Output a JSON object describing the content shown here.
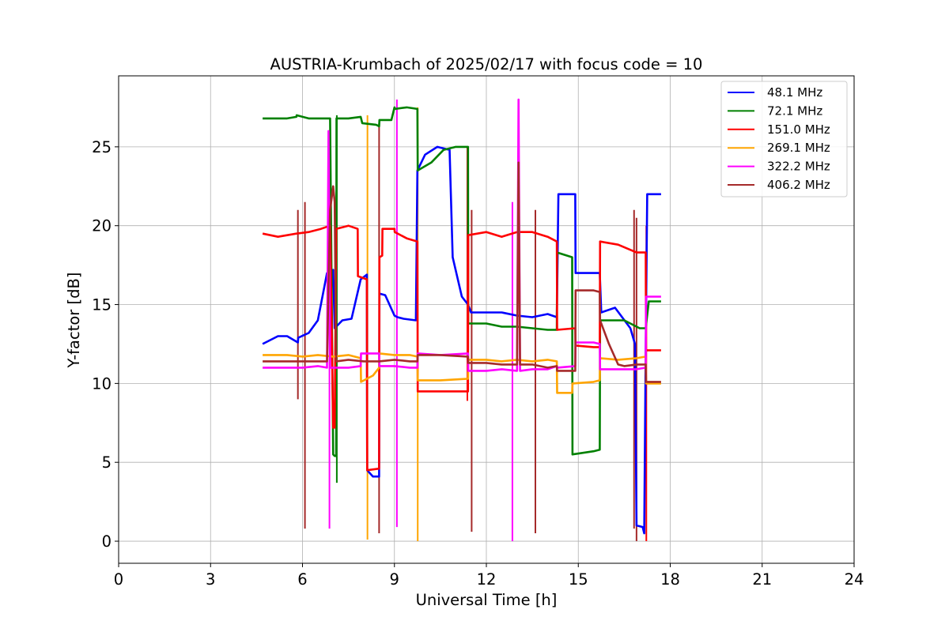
{
  "chart_data": {
    "type": "line",
    "title": "AUSTRIA-Krumbach of 2025/02/17 with focus code = 10",
    "xlabel": "Universal Time [h]",
    "ylabel": "Y-factor [dB]",
    "xlim": [
      0,
      24
    ],
    "ylim": [
      -1.4,
      29.5
    ],
    "xticks": [
      0,
      3,
      6,
      9,
      12,
      15,
      18,
      21,
      24
    ],
    "yticks": [
      0,
      5,
      10,
      15,
      20,
      25
    ],
    "grid": true,
    "legend_position": "top-right",
    "series": [
      {
        "name": " 48.1 MHz",
        "color": "#0000ff",
        "x": [
          4.7,
          5.2,
          5.5,
          5.85,
          5.86,
          6.2,
          6.5,
          6.8,
          7.0,
          7.05,
          7.3,
          7.6,
          7.9,
          8.1,
          8.11,
          8.3,
          8.5,
          8.51,
          8.7,
          9.0,
          9.1,
          9.3,
          9.7,
          9.75,
          10.0,
          10.4,
          10.8,
          10.9,
          11.2,
          11.4,
          11.5,
          12.0,
          12.5,
          13.0,
          13.5,
          14.0,
          14.3,
          14.35,
          14.9,
          14.91,
          15.5,
          15.7,
          15.75,
          16.2,
          16.7,
          16.85,
          16.9,
          17.1,
          17.15,
          17.2,
          17.25,
          17.7
        ],
        "y": [
          12.5,
          13.0,
          13.0,
          12.6,
          12.9,
          13.2,
          14.0,
          17.0,
          17.2,
          13.5,
          14.0,
          14.1,
          16.6,
          16.9,
          4.5,
          4.1,
          4.1,
          15.7,
          15.6,
          14.3,
          14.2,
          14.1,
          14.0,
          23.5,
          24.5,
          25.0,
          24.8,
          18.0,
          15.5,
          15.0,
          14.5,
          14.5,
          14.5,
          14.3,
          14.2,
          14.4,
          14.2,
          22.0,
          22.0,
          17.0,
          17.0,
          17.0,
          14.5,
          14.8,
          13.5,
          12.5,
          1.0,
          0.9,
          0.5,
          12.3,
          22.0,
          22.0
        ]
      },
      {
        "name": " 72.1 MHz",
        "color": "#008000",
        "x": [
          4.7,
          5.5,
          5.8,
          5.81,
          6.2,
          6.5,
          6.9,
          7.0,
          7.05,
          7.1,
          7.11,
          7.5,
          7.9,
          7.95,
          8.4,
          8.5,
          8.51,
          8.9,
          9.0,
          9.01,
          9.4,
          9.75,
          9.76,
          10.2,
          10.6,
          11.0,
          11.4,
          11.41,
          12.0,
          12.5,
          13.0,
          13.5,
          14.0,
          14.3,
          14.31,
          14.8,
          14.81,
          15.5,
          15.7,
          15.71,
          16.5,
          17.0,
          17.2,
          17.3,
          17.7
        ],
        "y": [
          26.8,
          26.8,
          26.9,
          27.0,
          26.8,
          26.8,
          26.8,
          5.5,
          5.4,
          5.4,
          26.8,
          26.8,
          26.9,
          26.5,
          26.4,
          26.3,
          26.7,
          26.7,
          27.5,
          27.4,
          27.5,
          27.4,
          23.5,
          24.0,
          24.8,
          25.0,
          25.0,
          13.8,
          13.8,
          13.6,
          13.6,
          13.5,
          13.4,
          13.4,
          18.3,
          18.0,
          5.5,
          5.7,
          5.8,
          14.0,
          14.0,
          13.5,
          13.5,
          15.2,
          15.2
        ]
      },
      {
        "name": " 151.0 MHz",
        "color": "#ff0000",
        "x": [
          4.7,
          5.2,
          5.8,
          6.2,
          6.6,
          6.9,
          7.0,
          7.05,
          7.1,
          7.5,
          7.8,
          7.81,
          8.1,
          8.11,
          8.5,
          8.51,
          8.6,
          8.61,
          9.0,
          9.01,
          9.4,
          9.75,
          9.76,
          10.5,
          11.4,
          11.41,
          12.0,
          12.5,
          13.0,
          13.5,
          14.0,
          14.3,
          14.31,
          14.9,
          14.91,
          15.5,
          15.7,
          15.71,
          16.3,
          16.9,
          17.2,
          17.21,
          17.7
        ],
        "y": [
          19.5,
          19.3,
          19.5,
          19.6,
          19.8,
          20.0,
          7.2,
          7.2,
          19.8,
          20.0,
          19.8,
          16.8,
          16.6,
          4.5,
          4.6,
          18.0,
          18.1,
          19.8,
          19.8,
          19.6,
          19.2,
          19.0,
          9.5,
          9.5,
          9.5,
          19.4,
          19.6,
          19.3,
          19.6,
          19.6,
          19.3,
          19.0,
          13.4,
          13.5,
          12.4,
          12.3,
          12.3,
          19.0,
          18.8,
          18.3,
          18.3,
          12.1,
          12.1
        ]
      },
      {
        "name": " 269.1 MHz",
        "color": "#ffa500",
        "x": [
          4.7,
          5.5,
          6.0,
          6.5,
          7.0,
          7.5,
          7.9,
          7.91,
          8.3,
          8.5,
          8.51,
          9.0,
          9.5,
          9.75,
          9.76,
          10.5,
          11.4,
          11.41,
          12.0,
          12.5,
          13.0,
          13.5,
          14.0,
          14.3,
          14.31,
          14.8,
          14.81,
          15.5,
          15.7,
          15.71,
          16.3,
          16.9,
          17.2,
          17.21,
          17.7
        ],
        "y": [
          11.8,
          11.8,
          11.7,
          11.8,
          11.7,
          11.8,
          11.6,
          10.1,
          10.5,
          11.0,
          11.9,
          11.8,
          11.8,
          11.7,
          10.2,
          10.2,
          10.3,
          11.5,
          11.5,
          11.4,
          11.5,
          11.4,
          11.5,
          11.4,
          9.4,
          9.4,
          10.0,
          10.1,
          10.2,
          11.6,
          11.5,
          11.6,
          11.7,
          10.0,
          10.0
        ]
      },
      {
        "name": " 322.2 MHz",
        "color": "#ff00ff",
        "x": [
          4.7,
          5.5,
          6.0,
          6.5,
          6.8,
          6.85,
          6.9,
          7.5,
          7.9,
          7.91,
          8.5,
          8.51,
          9.0,
          9.5,
          9.75,
          9.76,
          10.5,
          11.4,
          11.41,
          12.0,
          12.5,
          13.0,
          13.05,
          13.1,
          13.5,
          14.0,
          14.3,
          14.31,
          14.9,
          14.91,
          15.5,
          15.7,
          15.71,
          16.3,
          16.9,
          17.2,
          17.21,
          17.7
        ],
        "y": [
          11.0,
          11.0,
          11.0,
          11.1,
          11.0,
          26.0,
          11.0,
          11.0,
          11.1,
          11.9,
          11.9,
          11.1,
          11.1,
          11.0,
          11.0,
          11.9,
          11.8,
          11.9,
          10.8,
          10.8,
          10.9,
          10.8,
          28.0,
          10.8,
          10.9,
          10.9,
          11.1,
          11.0,
          11.1,
          12.6,
          12.6,
          12.5,
          10.9,
          10.9,
          10.9,
          11.0,
          15.5,
          15.5
        ]
      },
      {
        "name": " 406.2 MHz",
        "color": "#a52a2a",
        "x": [
          4.7,
          5.5,
          6.0,
          6.6,
          6.8,
          6.9,
          7.0,
          7.05,
          7.1,
          7.5,
          8.0,
          8.5,
          9.0,
          9.5,
          9.75,
          9.76,
          10.5,
          11.4,
          11.41,
          12.0,
          12.5,
          13.0,
          13.05,
          13.1,
          13.5,
          14.0,
          14.3,
          14.31,
          14.9,
          14.91,
          15.5,
          15.7,
          15.71,
          16.0,
          16.3,
          16.5,
          16.9,
          17.2,
          17.21,
          17.7
        ],
        "y": [
          11.4,
          11.4,
          11.4,
          11.4,
          11.4,
          21.0,
          22.5,
          21.5,
          11.4,
          11.5,
          11.4,
          11.4,
          11.5,
          11.4,
          11.4,
          11.8,
          11.8,
          11.7,
          11.3,
          11.3,
          11.2,
          11.2,
          24.0,
          11.2,
          11.2,
          11.0,
          11.1,
          10.8,
          10.8,
          15.9,
          15.9,
          15.8,
          14.0,
          12.5,
          11.2,
          11.1,
          11.2,
          11.2,
          10.1,
          10.1
        ]
      }
    ],
    "spikes": {
      "note": "",
      "items": [
        {
          "x": 5.85,
          "low": 9.0,
          "high": 21.0,
          "color": "#a52a2a"
        },
        {
          "x": 6.08,
          "low": 0.8,
          "high": 21.5,
          "color": "#a52a2a"
        },
        {
          "x": 6.88,
          "low": 0.8,
          "high": 26.0,
          "color": "#ff00ff"
        },
        {
          "x": 7.12,
          "low": 3.7,
          "high": 27.0,
          "color": "#008000"
        },
        {
          "x": 8.12,
          "low": 0.1,
          "high": 27.0,
          "color": "#ffa500"
        },
        {
          "x": 8.5,
          "low": 0.5,
          "high": 26.5,
          "color": "#a52a2a"
        },
        {
          "x": 9.08,
          "low": 0.9,
          "high": 28.0,
          "color": "#ff00ff"
        },
        {
          "x": 9.76,
          "low": 0.0,
          "high": 27.5,
          "color": "#ffa500"
        },
        {
          "x": 11.38,
          "low": 8.9,
          "high": 25.0,
          "color": "#ff0000"
        },
        {
          "x": 11.52,
          "low": 0.6,
          "high": 21.0,
          "color": "#a52a2a"
        },
        {
          "x": 12.85,
          "low": 0.0,
          "high": 21.5,
          "color": "#ff00ff"
        },
        {
          "x": 13.6,
          "low": 0.5,
          "high": 21.0,
          "color": "#a52a2a"
        },
        {
          "x": 16.82,
          "low": 0.8,
          "high": 21.0,
          "color": "#a52a2a"
        },
        {
          "x": 16.9,
          "low": 0.0,
          "high": 20.5,
          "color": "#a52a2a"
        },
        {
          "x": 17.22,
          "low": 0.0,
          "high": 20.0,
          "color": "#ff0000"
        }
      ]
    }
  }
}
